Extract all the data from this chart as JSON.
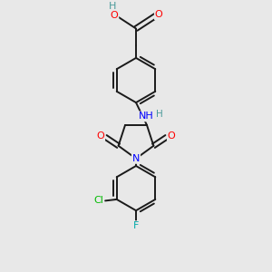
{
  "background_color": "#e8e8e8",
  "bond_color": "#1a1a1a",
  "atom_colors": {
    "O": "#ff0000",
    "N": "#0000ff",
    "Cl": "#00bb00",
    "F": "#00aaaa",
    "H": "#4a9a9a",
    "C": "#1a1a1a"
  },
  "bond_lw": 1.4,
  "fontsize": 7.5
}
